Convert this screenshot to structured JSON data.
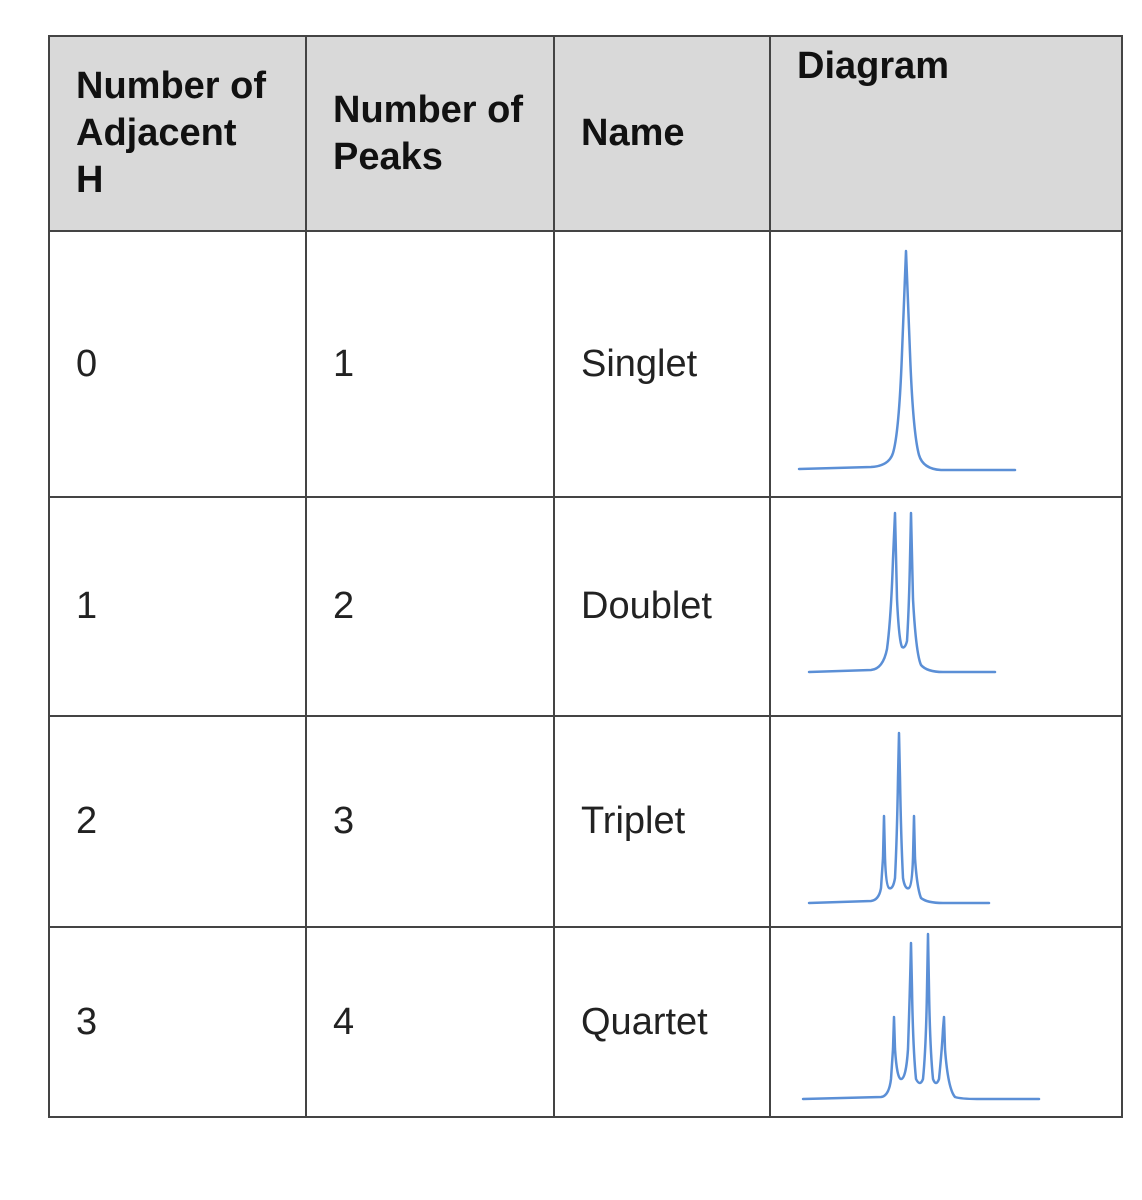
{
  "table": {
    "headers": {
      "adjacent_h": "Number of Adjacent H",
      "peaks": "Number of Peaks",
      "name": "Name",
      "diagram": "Diagram"
    },
    "rows": [
      {
        "adjacent_h": "0",
        "peaks": "1",
        "name": "Singlet"
      },
      {
        "adjacent_h": "1",
        "peaks": "2",
        "name": "Doublet"
      },
      {
        "adjacent_h": "2",
        "peaks": "3",
        "name": "Triplet"
      },
      {
        "adjacent_h": "3",
        "peaks": "4",
        "name": "Quartet"
      }
    ],
    "diagram_color": "#5b8fd6"
  }
}
